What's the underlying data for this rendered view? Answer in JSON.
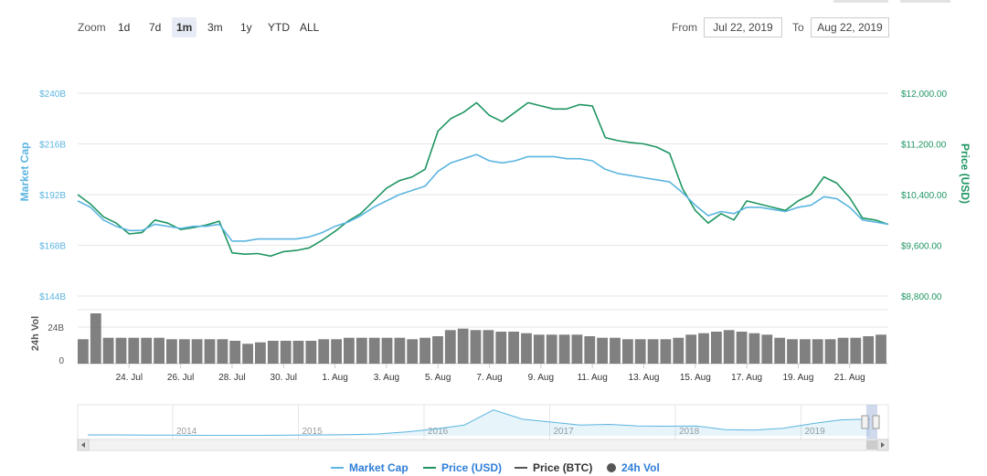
{
  "toolbar": {
    "zoom_label": "Zoom",
    "zoom_buttons": [
      "1d",
      "7d",
      "1m",
      "3m",
      "1y",
      "YTD",
      "ALL"
    ],
    "active_zoom": "1m",
    "from_label": "From",
    "from_value": "Jul 22, 2019",
    "to_label": "To",
    "to_value": "Aug 22, 2019"
  },
  "legend": {
    "market_cap": "Market Cap",
    "price_usd": "Price (USD)",
    "price_btc": "Price (BTC)",
    "vol_24h": "24h Vol"
  },
  "colors": {
    "market_cap": "#5bb5e0",
    "price_usd": "#1e9561",
    "price_btc": "#555555",
    "volume": "#555555",
    "legend_text": "#2f7ed8",
    "navigator_line": "#5bb5e0"
  },
  "chart_data": {
    "type": "line",
    "x_ticks": [
      "24. Jul",
      "26. Jul",
      "28. Jul",
      "30. Jul",
      "1. Aug",
      "3. Aug",
      "5. Aug",
      "7. Aug",
      "9. Aug",
      "11. Aug",
      "13. Aug",
      "15. Aug",
      "17. Aug",
      "19. Aug",
      "21. Aug"
    ],
    "left_axis": {
      "label": "Market Cap",
      "ticks": [
        "$240B",
        "$216B",
        "$192B",
        "$168B",
        "$144B"
      ],
      "range": [
        144,
        240
      ]
    },
    "right_axis": {
      "label": "Price (USD)",
      "ticks": [
        "$12,000.00",
        "$11,200.00",
        "$10,400.00",
        "$9,600.00",
        "$8,800.00"
      ],
      "range": [
        8800,
        12000
      ]
    },
    "volume_axis": {
      "label": "24h Vol",
      "ticks": [
        "24B",
        "0"
      ]
    },
    "navigator_years": [
      "2014",
      "2015",
      "2016",
      "2017",
      "2018",
      "2019"
    ],
    "x_days": [
      0,
      0.5,
      1,
      1.5,
      2,
      2.5,
      3,
      3.5,
      4,
      4.5,
      5,
      5.5,
      6,
      6.5,
      7,
      7.5,
      8,
      8.5,
      9,
      9.5,
      10,
      10.5,
      11,
      11.5,
      12,
      12.5,
      13,
      13.5,
      14,
      14.5,
      15,
      15.5,
      16,
      16.5,
      17,
      17.5,
      18,
      18.5,
      19,
      19.5,
      20,
      20.5,
      21,
      21.5,
      22,
      22.5,
      23,
      23.5,
      24,
      24.5,
      25,
      25.5,
      26,
      26.5,
      27,
      27.5,
      28,
      28.5,
      29,
      29.5,
      30,
      30.5,
      31,
      31.5
    ],
    "series": [
      {
        "name": "Price (USD)",
        "axis": "right",
        "values": [
          10400,
          10250,
          10050,
          9950,
          9780,
          9800,
          10000,
          9950,
          9850,
          9880,
          9920,
          9980,
          9480,
          9460,
          9470,
          9430,
          9500,
          9520,
          9560,
          9680,
          9820,
          9980,
          10100,
          10300,
          10500,
          10620,
          10680,
          10800,
          11400,
          11600,
          11700,
          11850,
          11650,
          11550,
          11700,
          11850,
          11800,
          11750,
          11750,
          11820,
          11800,
          11300,
          11250,
          11220,
          11200,
          11150,
          11050,
          10500,
          10150,
          9950,
          10100,
          10000,
          10300,
          10250,
          10200,
          10150,
          10300,
          10400,
          10680,
          10580,
          10350,
          10030,
          10000,
          9930
        ]
      },
      {
        "name": "Market Cap",
        "axis": "left",
        "values": [
          189,
          186,
          180,
          177,
          175,
          175,
          178,
          177,
          176,
          177,
          177,
          178,
          170,
          170,
          171,
          171,
          171,
          171,
          172,
          174,
          177,
          179,
          182,
          186,
          189,
          192,
          194,
          196,
          203,
          207,
          209,
          211,
          208,
          207,
          208,
          210,
          210,
          210,
          209,
          209,
          208,
          204,
          202,
          201,
          200,
          199,
          198,
          193,
          187,
          182,
          184,
          183,
          186,
          186,
          185,
          184,
          186,
          187,
          191,
          190,
          186,
          180,
          179,
          178
        ]
      }
    ],
    "volume_series": {
      "name": "24h Vol",
      "values_billion": [
        16,
        33,
        17,
        17,
        17,
        17,
        17,
        16,
        16,
        16,
        16,
        16,
        15,
        13,
        14,
        15,
        15,
        15,
        15,
        16,
        16,
        17,
        17,
        17,
        17,
        17,
        16,
        17,
        18,
        22,
        23,
        22,
        22,
        21,
        21,
        20,
        19,
        19,
        19,
        19,
        18,
        17,
        17,
        16,
        16,
        16,
        16,
        17,
        19,
        20,
        21,
        22,
        21,
        20,
        19,
        17,
        16,
        16,
        16,
        16,
        17,
        17,
        18,
        19
      ]
    },
    "navigator_values_usd_thousands": [
      0.6,
      0.6,
      0.5,
      0.4,
      0.3,
      0.3,
      0.3,
      0.4,
      0.6,
      0.7,
      1.2,
      2.5,
      4.5,
      7,
      17,
      11,
      9,
      7,
      7.5,
      6.5,
      6.3,
      6.5,
      4,
      3.8,
      5,
      8,
      10.5,
      11
    ]
  }
}
